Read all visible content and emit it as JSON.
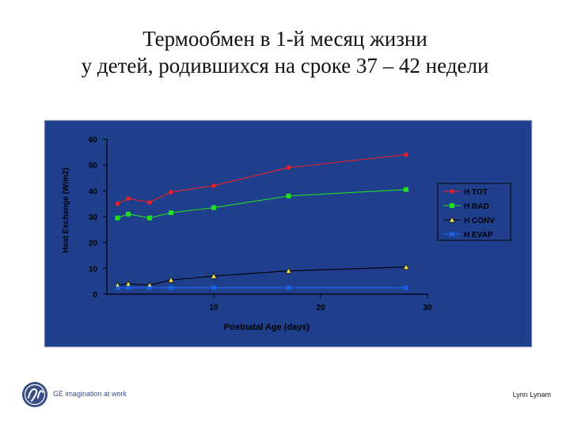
{
  "slide": {
    "title_line1": "Термообмен в 1-й месяц жизни",
    "title_line2": "у детей, родившихся на сроке 37 – 42 недели",
    "footer_tagline": "GE imagination at work",
    "footer_author": "Lynn Lynam"
  },
  "chart_data": {
    "type": "line",
    "title": "",
    "xlabel": "Postnatal Age (days)",
    "ylabel": "Heat Exchange (W/m2)",
    "xlim": [
      0,
      30
    ],
    "ylim": [
      0,
      60
    ],
    "x_ticks": [
      10,
      20,
      30
    ],
    "y_ticks": [
      0,
      10,
      20,
      30,
      40,
      50,
      60
    ],
    "grid": false,
    "legend_position": "right",
    "background_color": "#1f3f8c",
    "axis_color": "#000000",
    "series": [
      {
        "name": "H TOT",
        "color": "#e8202a",
        "marker": "circle",
        "points": [
          [
            1,
            35
          ],
          [
            2,
            37
          ],
          [
            4,
            35.5
          ],
          [
            6,
            39.5
          ],
          [
            10,
            42
          ],
          [
            17,
            49
          ],
          [
            28,
            54
          ]
        ]
      },
      {
        "name": "H RAD",
        "color": "#22dd22",
        "marker": "square",
        "points": [
          [
            1,
            29.5
          ],
          [
            2,
            31
          ],
          [
            4,
            29.5
          ],
          [
            6,
            31.5
          ],
          [
            10,
            33.5
          ],
          [
            17,
            38
          ],
          [
            28,
            40.5
          ]
        ]
      },
      {
        "name": "H CONV",
        "color": "#000000",
        "marker": "triangle",
        "points": [
          [
            1,
            3.5
          ],
          [
            2,
            4
          ],
          [
            4,
            3.5
          ],
          [
            6,
            5.5
          ],
          [
            10,
            7
          ],
          [
            17,
            9
          ],
          [
            28,
            10.5
          ]
        ]
      },
      {
        "name": "H EVAP",
        "color": "#1a6cff",
        "marker": "x",
        "points": [
          [
            1,
            2.5
          ],
          [
            2,
            2.5
          ],
          [
            4,
            2.5
          ],
          [
            6,
            2.5
          ],
          [
            10,
            2.5
          ],
          [
            17,
            2.5
          ],
          [
            28,
            2.5
          ]
        ]
      }
    ]
  }
}
